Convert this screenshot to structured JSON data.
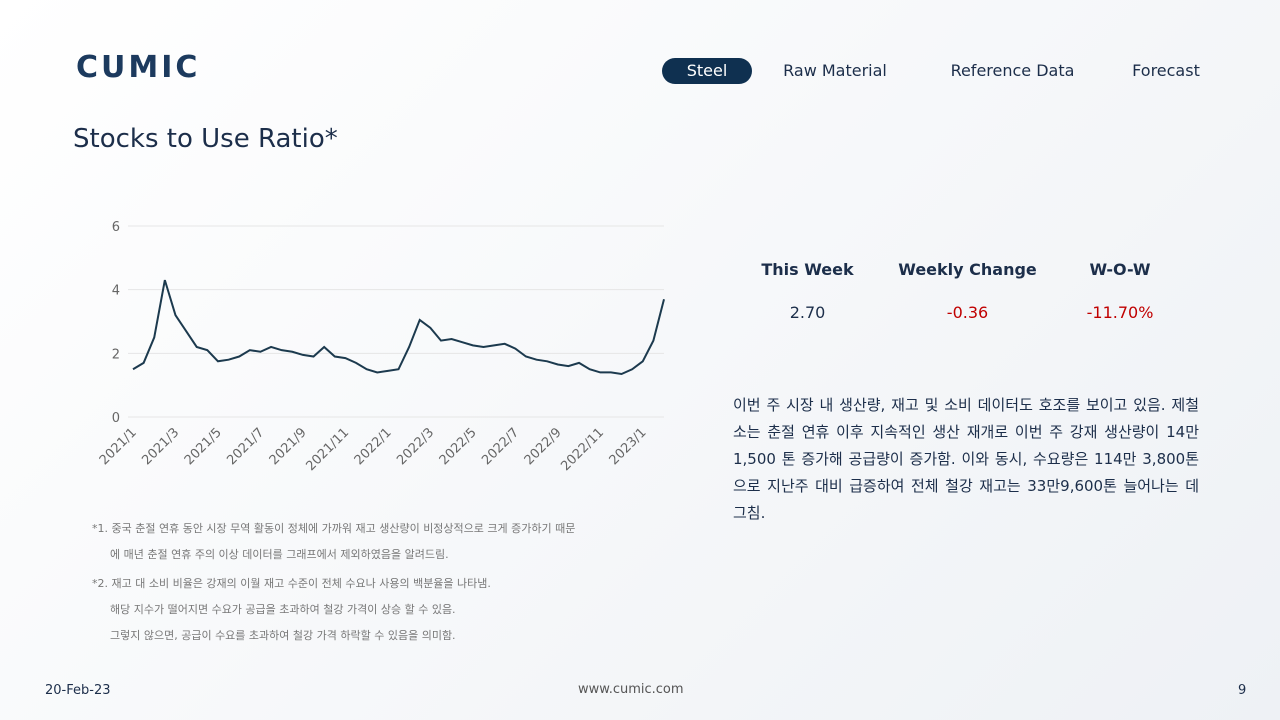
{
  "header": {
    "logo": "CUMIC",
    "nav": [
      "Steel",
      "Raw Material",
      "Reference Data",
      "Forecast"
    ]
  },
  "title": "Stocks to Use Ratio*",
  "chart_data": {
    "type": "line",
    "categories": [
      "2021/1",
      null,
      null,
      null,
      "2021/3",
      null,
      null,
      null,
      "2021/5",
      null,
      null,
      null,
      "2021/7",
      null,
      null,
      null,
      "2021/9",
      null,
      null,
      null,
      "2021/11",
      null,
      null,
      null,
      "2022/1",
      null,
      null,
      null,
      "2022/3",
      null,
      null,
      null,
      "2022/5",
      null,
      null,
      null,
      "2022/7",
      null,
      null,
      null,
      "2022/9",
      null,
      null,
      null,
      "2022/11",
      null,
      null,
      null,
      "2023/1",
      null,
      null
    ],
    "series": [
      {
        "color": "#1c3a4e",
        "values": [
          1.5,
          1.7,
          2.5,
          4.3,
          3.2,
          2.7,
          2.2,
          2.1,
          1.75,
          1.8,
          1.9,
          2.1,
          2.05,
          2.2,
          2.1,
          2.05,
          1.95,
          1.9,
          2.2,
          1.9,
          1.85,
          1.7,
          1.5,
          1.4,
          1.45,
          1.5,
          2.2,
          3.05,
          2.8,
          2.4,
          2.45,
          2.35,
          2.25,
          2.2,
          2.25,
          2.3,
          2.15,
          1.9,
          1.8,
          1.75,
          1.65,
          1.6,
          1.7,
          1.5,
          1.4,
          1.4,
          1.35,
          1.5,
          1.75,
          2.4,
          3.7
        ]
      }
    ],
    "ylim": [
      0,
      6
    ],
    "yticks": [
      0,
      2,
      4,
      6
    ],
    "grid": true
  },
  "stats": {
    "headers": [
      "This Week",
      "Weekly Change",
      "W-O-W"
    ],
    "values": [
      "2.70",
      "-0.36",
      "-11.70%"
    ]
  },
  "paragraph": "이번 주 시장 내 생산량, 재고 및 소비 데이터도 호조를 보이고 있음. 제철소는 춘절 연휴 이후 지속적인 생산 재개로 이번 주 강재 생산량이 14만1,500 톤 증가해 공급량이 증가함. 이와 동시, 수요량은 114만 3,800톤으로 지난주 대비 급증하여 전체 철강 재고는 33만9,600톤 늘어나는 데 그침.",
  "notes": [
    "*1. 중국 춘절 연휴 동안 시장 무역 활동이 정체에 가까워 재고 생산량이 비정상적으로 크게 증가하기 때문",
    "에 매년 춘절 연휴 주의 이상 데이터를 그래프에서 제외하였음을 알려드림.",
    "*2. 재고 대 소비 비율은 강재의 이월 재고 수준이 전체 수요나 사용의 백분율을 나타냄.",
    "해당 지수가 떨어지면 수요가 공급을 초과하여 철강 가격이 상승 할 수 있음.",
    "그렇지 않으면, 공급이 수요를 초과하여 철강 가격 하락할 수 있음을 의미함."
  ],
  "footer": {
    "date": "20-Feb-23",
    "url": "www.cumic.com",
    "page": "9"
  }
}
